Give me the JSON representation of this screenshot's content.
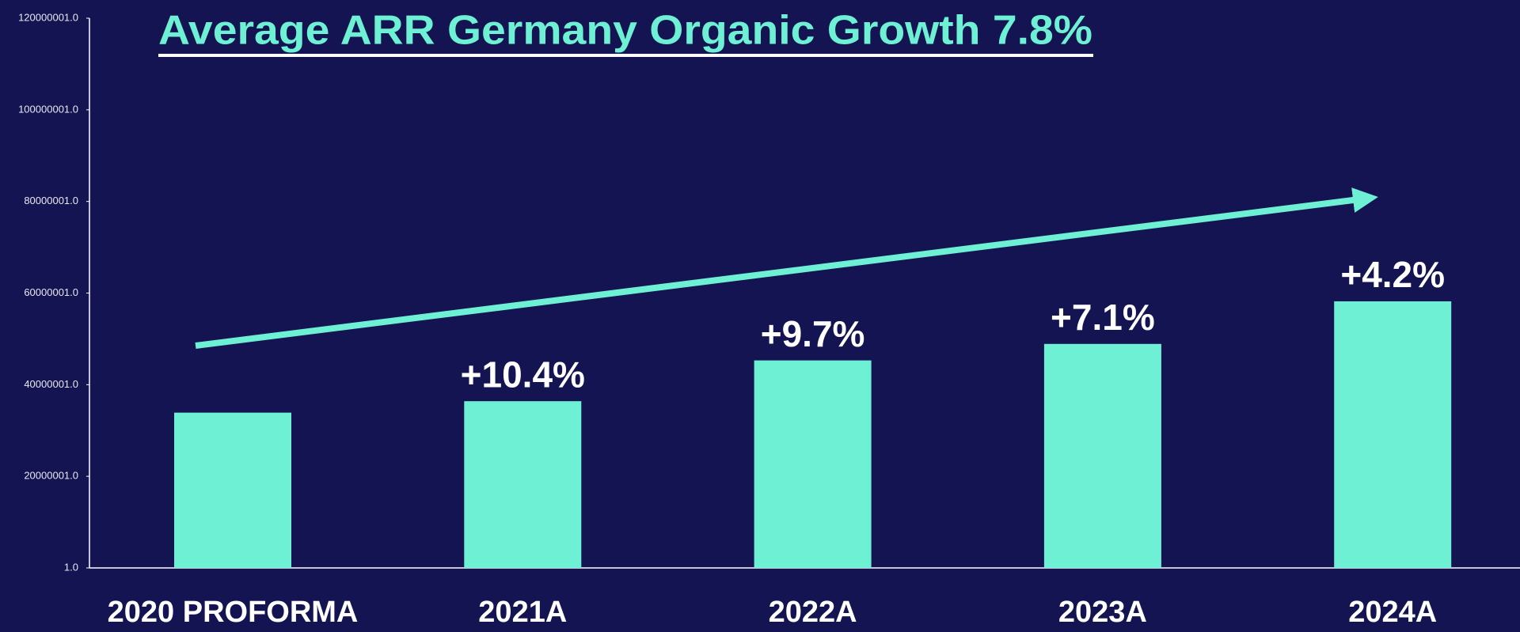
{
  "chart_data": {
    "type": "bar",
    "title": "Average ARR Germany Organic Growth  7.8%",
    "categories": [
      "2020 PROFORMA",
      "2021A",
      "2022A",
      "2023A",
      "2024A"
    ],
    "values": [
      33900000,
      36400000,
      45300000,
      48900000,
      58200000
    ],
    "bar_labels": [
      null,
      "+10.4%",
      "+9.7%",
      "+7.1%",
      "+4.2%"
    ],
    "color": "#6ef0d4",
    "ylim": [
      1,
      120000001
    ],
    "yticks": [
      {
        "value": 1,
        "label": "1.0"
      },
      {
        "value": 20000001,
        "label": "20000001.0"
      },
      {
        "value": 40000001,
        "label": "40000001.0"
      },
      {
        "value": 60000001,
        "label": "60000001.0"
      },
      {
        "value": 80000001,
        "label": "80000001.0"
      },
      {
        "value": 100000001,
        "label": "100000001.0"
      },
      {
        "value": 120000001,
        "label": "120000001.0"
      }
    ],
    "grid": false
  }
}
